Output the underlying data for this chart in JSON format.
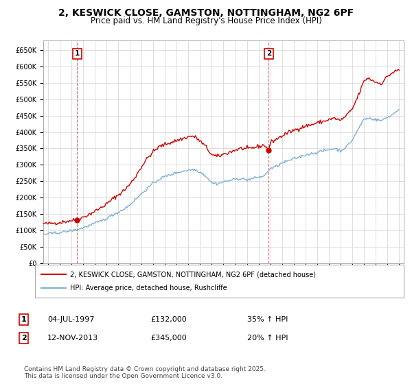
{
  "title": "2, KESWICK CLOSE, GAMSTON, NOTTINGHAM, NG2 6PF",
  "subtitle": "Price paid vs. HM Land Registry's House Price Index (HPI)",
  "title_fontsize": 10,
  "subtitle_fontsize": 8.5,
  "background_color": "#ffffff",
  "plot_bg_color": "#ffffff",
  "grid_color": "#dddddd",
  "ylim": [
    0,
    680000
  ],
  "yticks": [
    0,
    50000,
    100000,
    150000,
    200000,
    250000,
    300000,
    350000,
    400000,
    450000,
    500000,
    550000,
    600000,
    650000
  ],
  "xlim_start": 1994.6,
  "xlim_end": 2025.4,
  "xticks": [
    1995,
    1996,
    1997,
    1998,
    1999,
    2000,
    2001,
    2002,
    2003,
    2004,
    2005,
    2006,
    2007,
    2008,
    2009,
    2010,
    2011,
    2012,
    2013,
    2014,
    2015,
    2016,
    2017,
    2018,
    2019,
    2020,
    2021,
    2022,
    2023,
    2024,
    2025
  ],
  "legend_label_red": "2, KESWICK CLOSE, GAMSTON, NOTTINGHAM, NG2 6PF (detached house)",
  "legend_label_blue": "HPI: Average price, detached house, Rushcliffe",
  "red_color": "#cc0000",
  "blue_color": "#7bafd4",
  "purchase1_x": 1997.5,
  "purchase1_y": 132000,
  "purchase2_x": 2013.87,
  "purchase2_y": 345000,
  "annotation1_date": "04-JUL-1997",
  "annotation1_price": "£132,000",
  "annotation1_hpi": "35% ↑ HPI",
  "annotation2_date": "12-NOV-2013",
  "annotation2_price": "£345,000",
  "annotation2_hpi": "20% ↑ HPI",
  "footer": "Contains HM Land Registry data © Crown copyright and database right 2025.\nThis data is licensed under the Open Government Licence v3.0.",
  "footnote_fontsize": 6.5
}
